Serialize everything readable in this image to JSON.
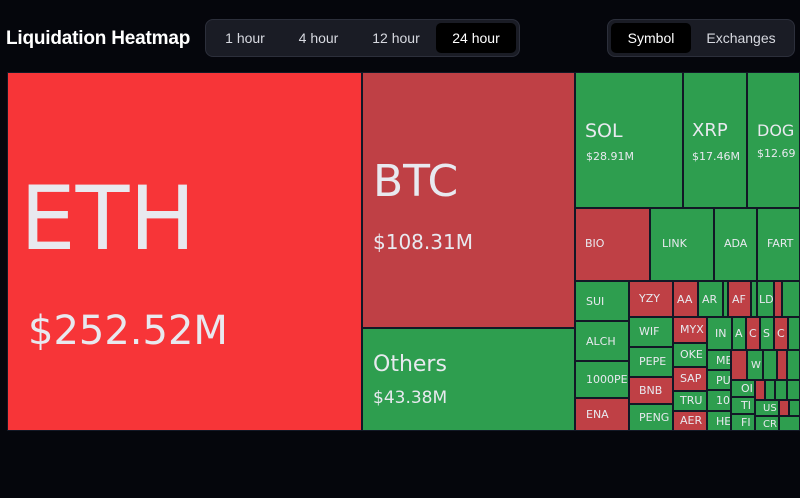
{
  "header": {
    "title": "Liquidation Heatmap",
    "time_filters": [
      "1 hour",
      "4 hour",
      "12 hour",
      "24 hour"
    ],
    "active_time_filter": "24 hour",
    "view_modes": [
      "Symbol",
      "Exchanges"
    ],
    "active_view_mode": "Symbol"
  },
  "heatmap": {
    "colors": {
      "large_red": "#f73538",
      "red": "#bf4045",
      "green": "#2e9e4f"
    },
    "tiles": [
      {
        "symbol": "ETH",
        "value": "$252.52M",
        "color": "red"
      },
      {
        "symbol": "BTC",
        "value": "$108.31M",
        "color": "dark-red"
      },
      {
        "symbol": "Others",
        "value": "$43.38M",
        "color": "green"
      },
      {
        "symbol": "SOL",
        "value": "$28.91M",
        "color": "green"
      },
      {
        "symbol": "XRP",
        "value": "$17.46M",
        "color": "green"
      },
      {
        "symbol": "DOG",
        "value": "$12.69",
        "color": "green"
      },
      {
        "symbol": "BIO",
        "color": "dark-red"
      },
      {
        "symbol": "LINK",
        "color": "green"
      },
      {
        "symbol": "ADA",
        "color": "green"
      },
      {
        "symbol": "FART",
        "color": "green"
      },
      {
        "symbol": "SUI",
        "color": "green"
      },
      {
        "symbol": "YZY",
        "color": "dark-red"
      },
      {
        "symbol": "AA",
        "color": "dark-red"
      },
      {
        "symbol": "AR",
        "color": "green"
      },
      {
        "symbol": "AF",
        "color": "dark-red"
      },
      {
        "symbol": "LD",
        "color": "green"
      },
      {
        "symbol": "ALCH",
        "color": "green"
      },
      {
        "symbol": "WIF",
        "color": "green"
      },
      {
        "symbol": "MYX",
        "color": "dark-red"
      },
      {
        "symbol": "IN",
        "color": "green"
      },
      {
        "symbol": "A",
        "color": "green"
      },
      {
        "symbol": "C",
        "color": "dark-red"
      },
      {
        "symbol": "S",
        "color": "green"
      },
      {
        "symbol": "C",
        "color": "dark-red"
      },
      {
        "symbol": "1000PEP",
        "color": "green"
      },
      {
        "symbol": "PEPE",
        "color": "green"
      },
      {
        "symbol": "OKE",
        "color": "green"
      },
      {
        "symbol": "ME",
        "color": "green"
      },
      {
        "symbol": "BNB",
        "color": "dark-red"
      },
      {
        "symbol": "SAP",
        "color": "dark-red"
      },
      {
        "symbol": "PU",
        "color": "green"
      },
      {
        "symbol": "ENA",
        "color": "dark-red"
      },
      {
        "symbol": "TRU",
        "color": "green"
      },
      {
        "symbol": "10",
        "color": "green"
      },
      {
        "symbol": "PENG",
        "color": "green"
      },
      {
        "symbol": "AER",
        "color": "dark-red"
      },
      {
        "symbol": "HE",
        "color": "green"
      },
      {
        "symbol": "OI",
        "color": "green"
      },
      {
        "symbol": "TI",
        "color": "green"
      },
      {
        "symbol": "FI",
        "color": "green"
      },
      {
        "symbol": "W",
        "color": "green"
      },
      {
        "symbol": "US",
        "color": "green"
      },
      {
        "symbol": "CR",
        "color": "green"
      }
    ]
  }
}
